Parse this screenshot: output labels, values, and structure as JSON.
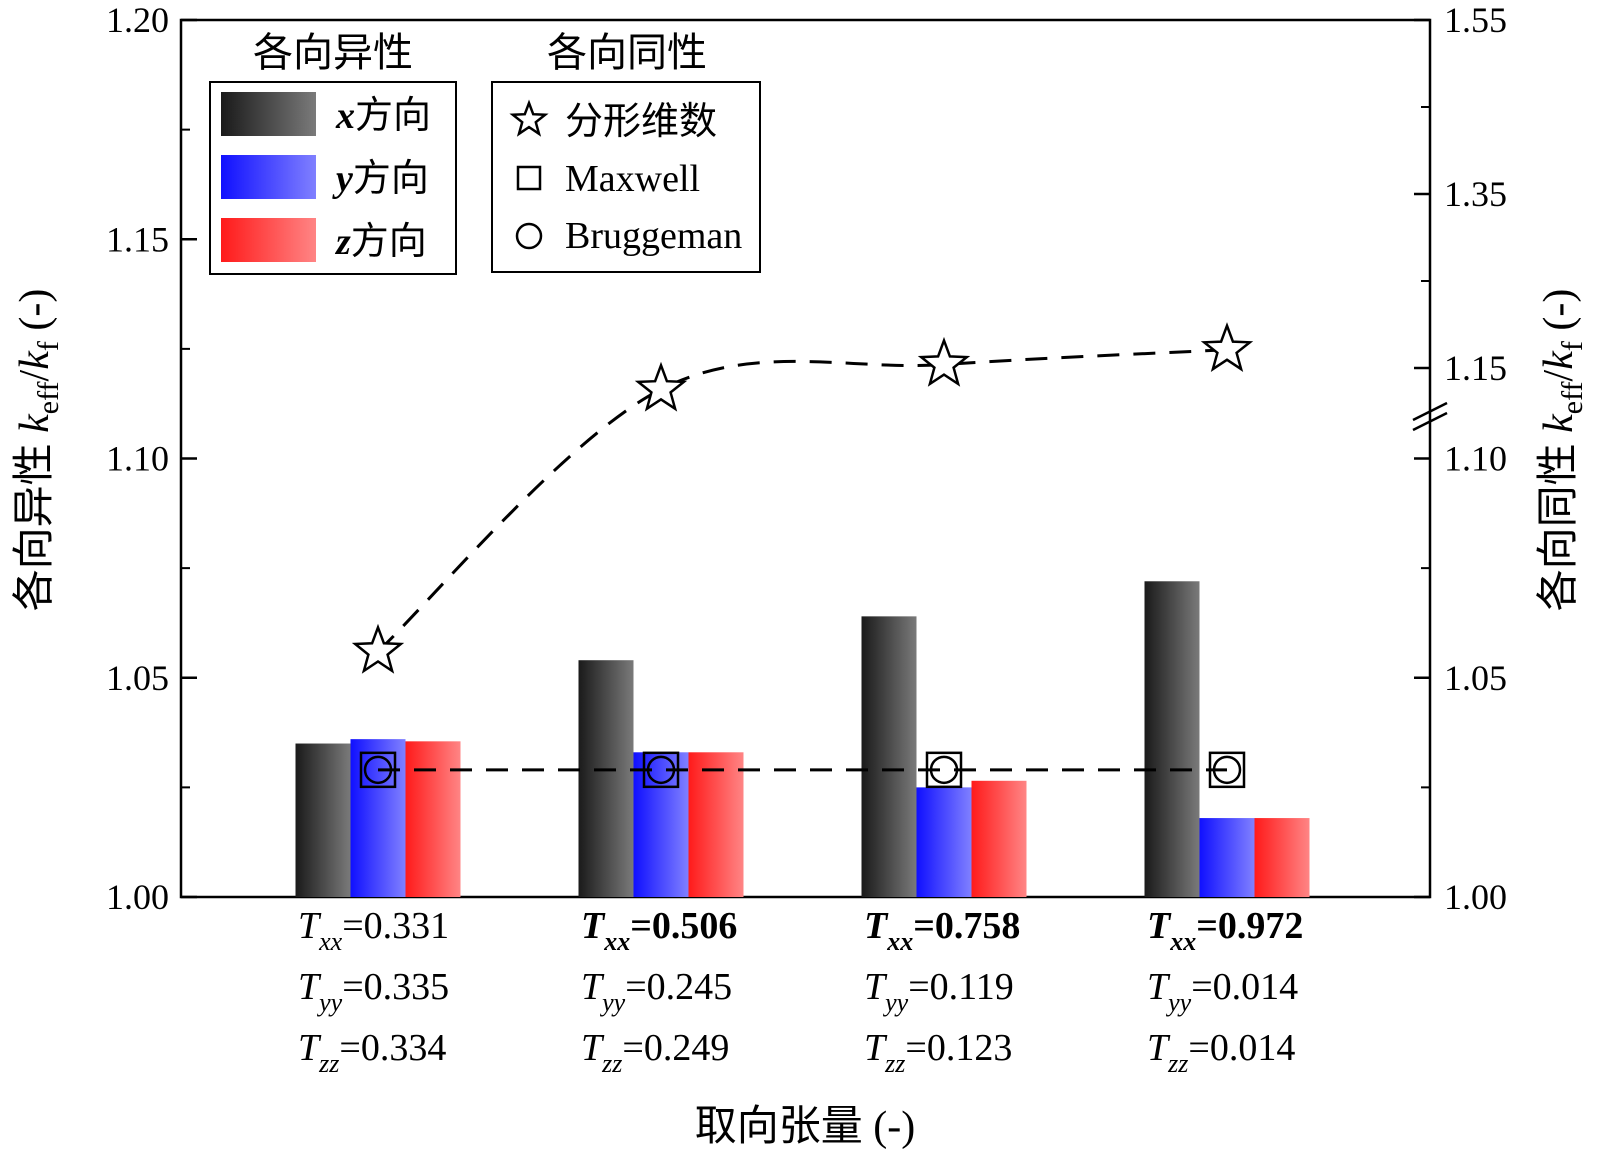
{
  "chart_data": {
    "type": "bar",
    "x_title": "取向张量 (-)",
    "y_left_title_prefix": "各向异性 ",
    "y_right_title_prefix": "各向同性 ",
    "y_title_k": "k",
    "y_title_sub_eff": "eff",
    "y_title_slash": "/",
    "y_title_sub_f": "f",
    "y_title_suffix": " (-)",
    "y_left": {
      "range": [
        1.0,
        1.2
      ],
      "ticks": [
        "1.00",
        "1.05",
        "1.10",
        "1.15",
        "1.20"
      ]
    },
    "y_right": {
      "range": [
        1.0,
        1.55
      ],
      "break_between": [
        1.1,
        1.15
      ],
      "ticks": [
        "1.00",
        "1.05",
        "1.10",
        "1.15",
        "1.35",
        "1.55"
      ]
    },
    "categories": [
      {
        "xx_label": "T",
        "xx_sub": "xx",
        "xx_val": "=0.331",
        "xx_bold": false,
        "yy_label": "T",
        "yy_sub": "yy",
        "yy_val": "=0.335",
        "zz_label": "T",
        "zz_sub": "zz",
        "zz_val": "=0.334"
      },
      {
        "xx_label": "T",
        "xx_sub": "xx",
        "xx_val": "=0.506",
        "xx_bold": true,
        "yy_label": "T",
        "yy_sub": "yy",
        "yy_val": "=0.245",
        "zz_label": "T",
        "zz_sub": "zz",
        "zz_val": "=0.249"
      },
      {
        "xx_label": "T",
        "xx_sub": "xx",
        "xx_val": "=0.758",
        "xx_bold": true,
        "yy_label": "T",
        "yy_sub": "yy",
        "yy_val": "=0.119",
        "zz_label": "T",
        "zz_sub": "zz",
        "zz_val": "=0.123"
      },
      {
        "xx_label": "T",
        "xx_sub": "xx",
        "xx_val": "=0.972",
        "xx_bold": true,
        "yy_label": "T",
        "yy_sub": "yy",
        "yy_val": "=0.014",
        "zz_label": "T",
        "zz_sub": "zz",
        "zz_val": "=0.014"
      }
    ],
    "series": [
      {
        "name": "x方向",
        "axis_letter": "x",
        "axis_word": "方向",
        "values": [
          1.035,
          1.054,
          1.064,
          1.072
        ],
        "color_start": "#1a1a1a",
        "color_end": "#7a7a7a"
      },
      {
        "name": "y方向",
        "axis_letter": "y",
        "axis_word": "方向",
        "values": [
          1.036,
          1.033,
          1.025,
          1.018
        ],
        "color_start": "#1010ff",
        "color_end": "#8080ff"
      },
      {
        "name": "z方向",
        "axis_letter": "z",
        "axis_word": "方向",
        "values": [
          1.0355,
          1.033,
          1.0265,
          1.018
        ],
        "color_start": "#ff1a1a",
        "color_end": "#ff8585"
      }
    ],
    "isotropic_series": [
      {
        "name": "分形维数",
        "marker": "star",
        "values": [
          1.056,
          1.1255,
          1.154,
          1.171
        ]
      },
      {
        "name": "Maxwell",
        "marker": "square",
        "values": [
          1.029,
          1.029,
          1.029,
          1.029
        ]
      },
      {
        "name": "Bruggeman",
        "marker": "circle",
        "values": [
          1.029,
          1.029,
          1.029,
          1.029
        ]
      }
    ],
    "legend_anisotropic_title": "各向异性",
    "legend_isotropic_title": "各向同性"
  }
}
